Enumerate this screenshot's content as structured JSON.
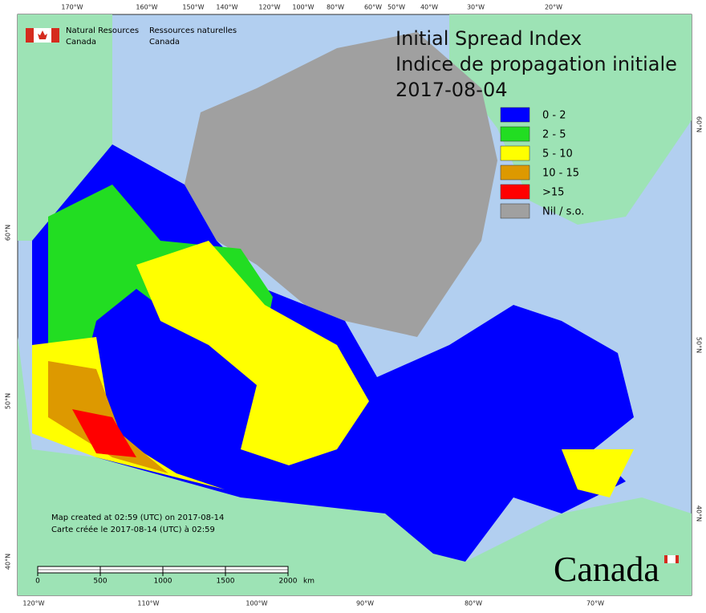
{
  "logo": {
    "en": [
      "Natural Resources",
      "Canada"
    ],
    "fr": [
      "Ressources naturelles",
      "Canada"
    ]
  },
  "title": [
    "Initial Spread Index",
    "Indice de propagation initiale",
    "2017-08-04"
  ],
  "legend": [
    {
      "label": "0 - 2",
      "color": "#0000ff"
    },
    {
      "label": "2 - 5",
      "color": "#22dd22"
    },
    {
      "label": "5 - 10",
      "color": "#ffff00"
    },
    {
      "label": "10 - 15",
      "color": "#dd9900"
    },
    {
      "label": ">15",
      "color": "#ff0000"
    },
    {
      "label": "Nil / s.o.",
      "color": "#a0a0a0"
    }
  ],
  "graticule": {
    "top": [
      "170°W",
      "160°W",
      "150°W",
      "140°W",
      "120°W",
      "100°W",
      "80°W",
      "60°W",
      "50°W",
      "40°W",
      "30°W",
      "20°W"
    ],
    "bottom": [
      "120°W",
      "110°W",
      "100°W",
      "90°W",
      "80°W",
      "70°W"
    ],
    "left": [
      "60°N",
      "50°N",
      "40°N"
    ],
    "right": [
      "60°N",
      "50°N",
      "40°N"
    ]
  },
  "credits": [
    "Map created at 02:59 (UTC) on 2017-08-14",
    "Carte créée le 2017-08-14 (UTC) à 02:59"
  ],
  "scale_bar": {
    "labels": [
      "0",
      "500",
      "1000",
      "1500",
      "2000"
    ],
    "unit": "km"
  },
  "wordmark": "Canada"
}
